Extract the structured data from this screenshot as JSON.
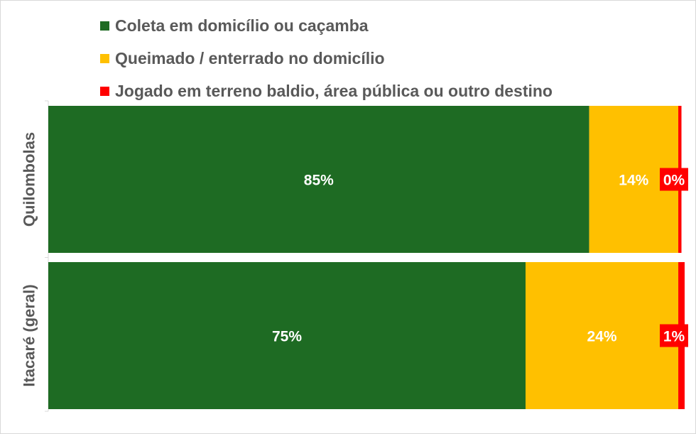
{
  "chart_data": {
    "type": "bar",
    "orientation": "horizontal",
    "stacked": "percent",
    "categories": [
      "Quilombolas",
      "Itacaré (geral)"
    ],
    "series": [
      {
        "name": "Coleta em domicílio ou caçamba",
        "color": "#1e6b23",
        "values": [
          85,
          75
        ],
        "labels": [
          "85%",
          "75%"
        ]
      },
      {
        "name": "Queimado / enterrado no domicílio",
        "color": "#ffc000",
        "values": [
          14,
          24
        ],
        "labels": [
          "14%",
          "24%"
        ]
      },
      {
        "name": "Jogado em terreno baldio, área pública ou outro destino",
        "color": "#ff0000",
        "values": [
          0.5,
          1
        ],
        "labels": [
          "0%",
          "1%"
        ]
      }
    ],
    "xlim": [
      0,
      100
    ],
    "grid": false,
    "legend_position": "top"
  }
}
